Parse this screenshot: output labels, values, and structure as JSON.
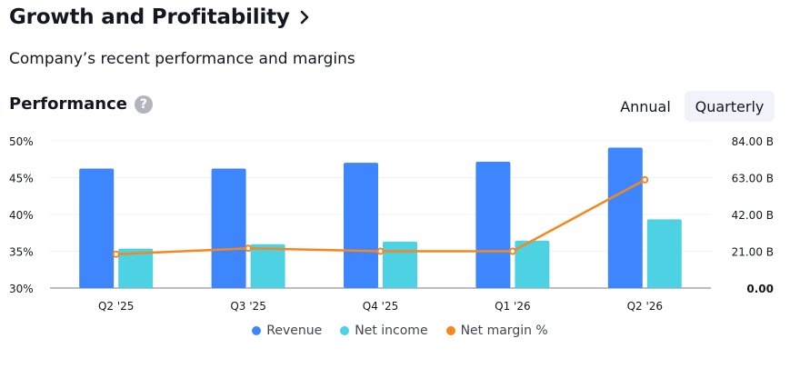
{
  "header": {
    "title": "Growth and Profitability"
  },
  "subtitle": "Company’s recent performance and margins",
  "performance": {
    "title": "Performance",
    "help": "?"
  },
  "toggles": {
    "annual": "Annual",
    "quarterly": "Quarterly",
    "selected": "Quarterly"
  },
  "colors": {
    "revenue": "#3e86fe",
    "net_income": "#4dd2e3",
    "net_margin": "#f7861d",
    "grid": "#f0f3fa",
    "axis": "#787b86"
  },
  "chart_data": {
    "type": "bar",
    "categories": [
      "Q2 '25",
      "Q3 '25",
      "Q4 '25",
      "Q1 '26",
      "Q2 '26"
    ],
    "series": [
      {
        "name": "Revenue",
        "type": "bar",
        "axis": "right",
        "values": [
          68.2,
          68.2,
          71.5,
          72.1,
          80.1
        ]
      },
      {
        "name": "Net income",
        "type": "bar",
        "axis": "right",
        "values": [
          22.5,
          25.0,
          26.5,
          27.0,
          39.2
        ]
      },
      {
        "name": "Net margin %",
        "type": "line",
        "axis": "left",
        "values": [
          34.6,
          35.4,
          35.0,
          35.0,
          44.7
        ]
      }
    ],
    "y_left": {
      "ticks": [
        "50%",
        "45%",
        "40%",
        "35%",
        "30%"
      ],
      "range": [
        30,
        50
      ]
    },
    "y_right": {
      "ticks": [
        "84.00 B",
        "63.00 B",
        "42.00 B",
        "21.00 B",
        "0.00"
      ],
      "range": [
        0,
        84
      ]
    },
    "grid": true,
    "legend_position": "bottom"
  }
}
